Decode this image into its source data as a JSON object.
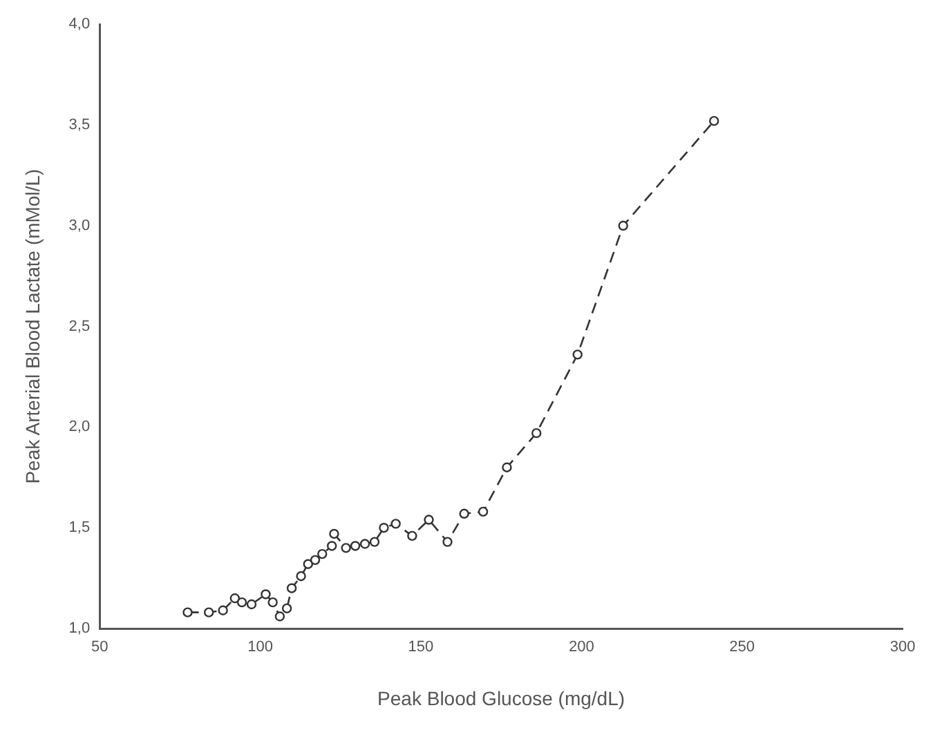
{
  "chart_data": {
    "type": "line",
    "xlabel": "Peak Blood Glucose (mg/dL)",
    "ylabel": "Peak Arterial Blood Lactate (mMol/L)",
    "xlim": [
      50,
      300
    ],
    "xticks": [
      50,
      100,
      150,
      200,
      250,
      300
    ],
    "ylim": [
      1.0,
      4.0
    ],
    "yticks": [
      {
        "value": 1.0,
        "label": "1,0"
      },
      {
        "value": 1.5,
        "label": "1,5"
      },
      {
        "value": 2.0,
        "label": "2,0"
      },
      {
        "value": 2.5,
        "label": "2,5"
      },
      {
        "value": 3.0,
        "label": "3,0"
      },
      {
        "value": 3.5,
        "label": "3,5"
      },
      {
        "value": 4.0,
        "label": "4,0"
      }
    ],
    "grid": false,
    "legend": false,
    "marker": "circle",
    "line_style": "dashed",
    "series": [
      {
        "color": "#333333",
        "x": [
          77.4,
          84.0,
          88.4,
          92.1,
          94.3,
          97.3,
          101.7,
          103.9,
          106.1,
          108.3,
          109.8,
          112.7,
          114.9,
          117.1,
          119.3,
          122.3,
          123.0,
          126.7,
          129.6,
          132.6,
          135.6,
          138.5,
          142.2,
          147.3,
          152.5,
          158.3,
          163.5,
          169.4,
          176.8,
          186.0,
          198.8,
          213.0,
          241.3
        ],
        "values": [
          1.08,
          1.08,
          1.09,
          1.15,
          1.13,
          1.12,
          1.17,
          1.13,
          1.06,
          1.1,
          1.2,
          1.26,
          1.32,
          1.34,
          1.37,
          1.41,
          1.47,
          1.4,
          1.41,
          1.42,
          1.43,
          1.5,
          1.52,
          1.46,
          1.54,
          1.43,
          1.57,
          1.58,
          1.8,
          1.97,
          2.36,
          3.0,
          3.52
        ]
      }
    ]
  }
}
